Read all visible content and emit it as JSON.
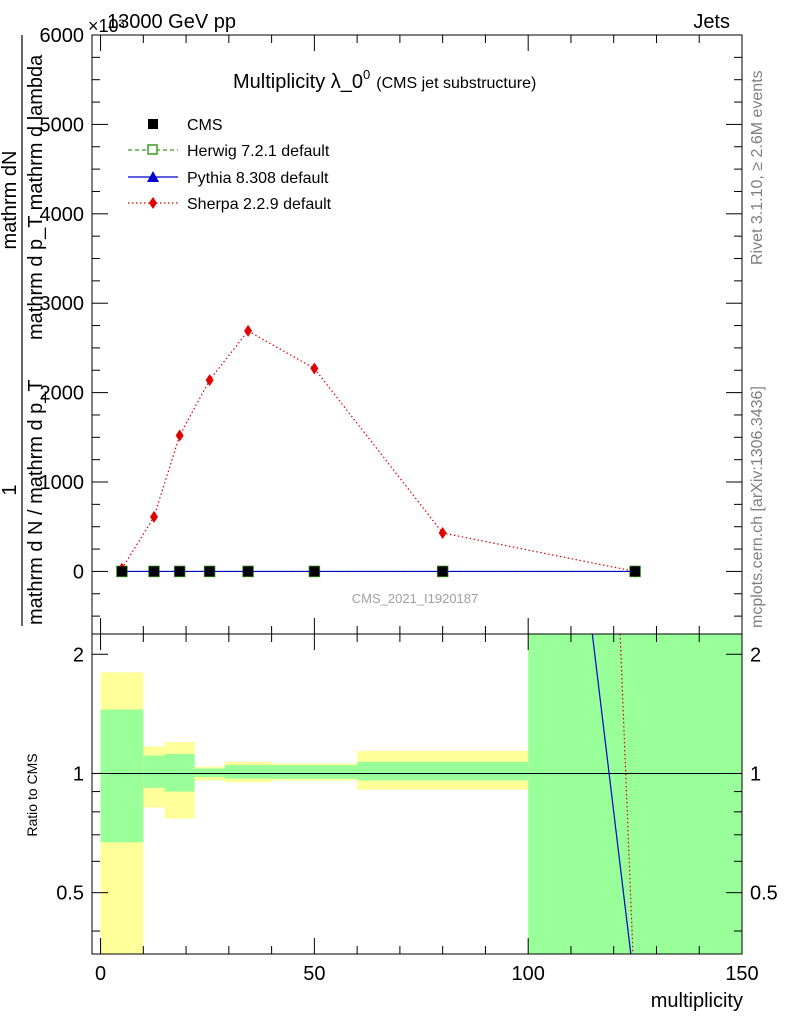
{
  "header": {
    "exponent": "×10³",
    "energy": "13000 GeV pp",
    "category": "Jets"
  },
  "side": {
    "rivet": "Rivet 3.1.10, ≥ 2.6M events",
    "mcplots": "mcplots.cern.ch [arXiv:1306.3436]"
  },
  "watermark": "CMS_2021_I1920187",
  "chart_data": [
    {
      "type": "line",
      "title_main": "Multiplicity λ_0",
      "title_sup": "0",
      "title_sub": "(CMS jet substructure)",
      "ylabel_num": "mathrm dN",
      "ylabel_den": "mathrm d p_T mathrm d lambda",
      "ylabel_prefix_num": "1",
      "ylabel_prefix_den": "mathrm d N / mathrm d p_T",
      "xlim": [
        -2,
        150
      ],
      "ylim": [
        -700,
        6000
      ],
      "yticks": [
        0,
        1000,
        2000,
        3000,
        4000,
        5000,
        6000
      ],
      "ytick_labels": [
        "0",
        "1000",
        "2000",
        "3000",
        "4000",
        "5000",
        "6000"
      ],
      "legend_position": "top-left",
      "series": [
        {
          "name": "CMS",
          "color": "#000000",
          "marker": "square",
          "x": [
            5,
            12.5,
            18.5,
            25.5,
            34.5,
            50,
            80,
            125
          ],
          "y": [
            0,
            0,
            0,
            0,
            0,
            0,
            0,
            0
          ]
        },
        {
          "name": "Herwig 7.2.1 default",
          "color": "#3a9a1e",
          "marker": "open-square",
          "dash": "dashed",
          "x": [
            5,
            12.5,
            18.5,
            25.5,
            34.5,
            50,
            80,
            125
          ],
          "y": [
            0,
            0,
            0,
            0,
            0,
            0,
            0,
            0
          ]
        },
        {
          "name": "Pythia 8.308 default",
          "color": "#0000cc",
          "marker": "triangle",
          "dash": "solid",
          "x": [
            5,
            12.5,
            18.5,
            25.5,
            34.5,
            50,
            80,
            125
          ],
          "y": [
            0,
            0,
            0,
            0,
            0,
            0,
            0,
            0
          ]
        },
        {
          "name": "Sherpa 2.2.9 default",
          "color": "#e00000",
          "marker": "diamond",
          "dash": "dotted",
          "x": [
            5,
            12.5,
            18.5,
            25.5,
            34.5,
            50,
            80,
            125
          ],
          "y": [
            30,
            610,
            1520,
            2140,
            2690,
            2270,
            430,
            0
          ]
        }
      ]
    },
    {
      "type": "area",
      "ylabel": "Ratio to CMS",
      "xlabel": "multiplicity",
      "xlim": [
        -2,
        150
      ],
      "ylim": [
        0.35,
        2.25
      ],
      "xticks": [
        0,
        50,
        100,
        150
      ],
      "xtick_labels": [
        "0",
        "50",
        "100",
        "150"
      ],
      "yticks": [
        0.5,
        1,
        2
      ],
      "ytick_labels": [
        "0.5",
        "1",
        "2"
      ],
      "bands": [
        {
          "x": [
            0,
            10
          ],
          "stat": [
            0.67,
            1.45
          ],
          "total": [
            0.35,
            1.8
          ]
        },
        {
          "x": [
            10,
            15
          ],
          "stat": [
            0.92,
            1.11
          ],
          "total": [
            0.82,
            1.17
          ]
        },
        {
          "x": [
            15,
            22
          ],
          "stat": [
            0.9,
            1.12
          ],
          "total": [
            0.77,
            1.2
          ]
        },
        {
          "x": [
            22,
            29
          ],
          "stat": [
            0.98,
            1.03
          ],
          "total": [
            0.96,
            1.04
          ]
        },
        {
          "x": [
            29,
            40
          ],
          "stat": [
            0.97,
            1.05
          ],
          "total": [
            0.95,
            1.07
          ]
        },
        {
          "x": [
            40,
            60
          ],
          "stat": [
            0.97,
            1.05
          ],
          "total": [
            0.96,
            1.06
          ]
        },
        {
          "x": [
            60,
            100
          ],
          "stat": [
            0.96,
            1.07
          ],
          "total": [
            0.91,
            1.14
          ]
        },
        {
          "x": [
            100,
            150
          ],
          "stat": [
            0.35,
            2.25
          ],
          "total": [
            0.35,
            2.25
          ]
        }
      ],
      "ratio_lines": [
        {
          "name": "Pythia 8.308 default",
          "color": "#0000cc",
          "dash": "solid",
          "x": [
            115,
            124
          ],
          "y": [
            2.25,
            0.35
          ]
        },
        {
          "name": "Sherpa 2.2.9 default",
          "color": "#e00000",
          "dash": "dotted",
          "x": [
            121.5,
            124.5
          ],
          "y": [
            2.25,
            0.35
          ]
        }
      ],
      "reference": 1
    }
  ]
}
